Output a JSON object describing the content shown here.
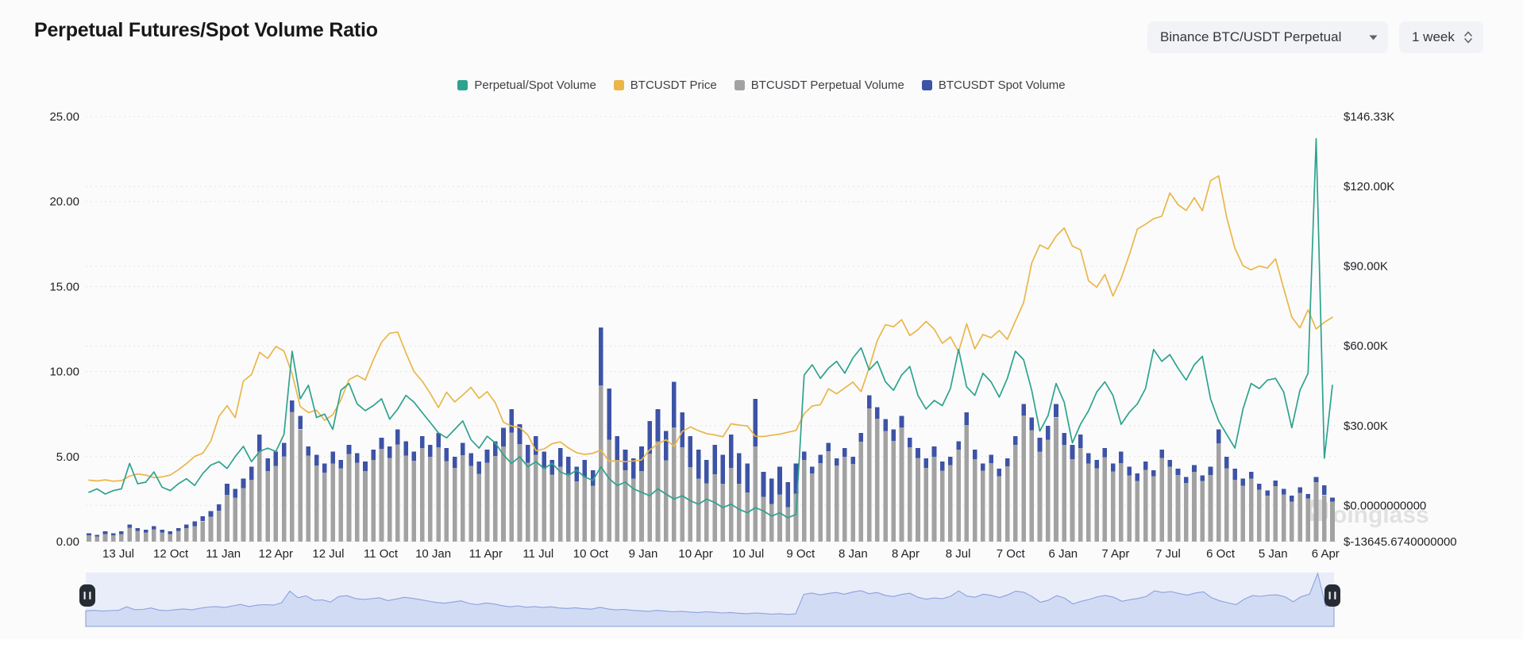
{
  "page": {
    "title": "Perpetual Futures/Spot Volume Ratio"
  },
  "controls": {
    "symbol_dropdown": {
      "value": "Binance BTC/USDT Perpetual"
    },
    "interval_spinner": {
      "value": "1 week"
    }
  },
  "legend": [
    {
      "label": "Perpetual/Spot Volume",
      "color": "#2EA28E"
    },
    {
      "label": "BTCUSDT Price",
      "color": "#EAB64A"
    },
    {
      "label": "BTCUSDT Perpetual Volume",
      "color": "#A2A2A2"
    },
    {
      "label": "BTCUSDT Spot Volume",
      "color": "#3D53A6"
    }
  ],
  "watermark": {
    "text": "oinglass"
  },
  "colors": {
    "ratio_line": "#2EA28E",
    "price_line": "#EAB64A",
    "perp_bar": "#A2A2A2",
    "spot_bar": "#3D53A6",
    "grid": "#E4E4E5",
    "nav_bg": "#E9EDF9",
    "nav_area": "#CBD7F3",
    "nav_line": "#8CA0DE",
    "nav_handle": "#262B34"
  },
  "chart_data": {
    "type": "mixed",
    "note": "Weekly data (rendered bi-weekly, 154 points) from ~Jul 2020 to 6 Apr (end of range). Volume bar values are relative heights on the left-axis unit scale because the volume axis is unlabeled in the chart.",
    "x_ticks": [
      "13 Jul",
      "12 Oct",
      "11 Jan",
      "12 Apr",
      "12 Jul",
      "11 Oct",
      "10 Jan",
      "11 Apr",
      "11 Jul",
      "10 Oct",
      "9 Jan",
      "10 Apr",
      "10 Jul",
      "9 Oct",
      "8 Jan",
      "8 Apr",
      "8 Jul",
      "7 Oct",
      "6 Jan",
      "7 Apr",
      "7 Jul",
      "6 Oct",
      "5 Jan",
      "6 Apr"
    ],
    "left_axis": {
      "min": 0,
      "max": 25,
      "ticks": [
        {
          "label": "25.00",
          "value": 25
        },
        {
          "label": "20.00",
          "value": 20
        },
        {
          "label": "15.00",
          "value": 15
        },
        {
          "label": "10.00",
          "value": 10
        },
        {
          "label": "5.00",
          "value": 5
        },
        {
          "label": "0.00",
          "value": 0
        }
      ]
    },
    "right_axis": {
      "min": -13645.674,
      "max": 146330,
      "ticks": [
        {
          "label": "$146.33K",
          "value": 146330
        },
        {
          "label": "$120.00K",
          "value": 120000
        },
        {
          "label": "$90.00K",
          "value": 90000
        },
        {
          "label": "$60.00K",
          "value": 60000
        },
        {
          "label": "$30.00K",
          "value": 30000
        },
        {
          "label": "$0.0000000000",
          "value": 0
        },
        {
          "label": "$-13645.6740000000",
          "value": -13645.674
        }
      ]
    },
    "series": [
      {
        "name": "Perpetual/Spot Volume",
        "type": "line",
        "axis": "left",
        "color": "#2EA28E",
        "values": [
          2.9,
          3.1,
          2.8,
          3.0,
          3.1,
          4.6,
          3.4,
          3.5,
          4.1,
          3.2,
          3.0,
          3.4,
          3.7,
          3.3,
          4.0,
          4.5,
          4.7,
          4.3,
          5.0,
          5.6,
          4.7,
          5.3,
          5.5,
          5.3,
          6.3,
          11.2,
          8.4,
          9.2,
          7.3,
          7.5,
          6.6,
          8.9,
          9.3,
          8.1,
          7.7,
          8.0,
          8.4,
          7.2,
          7.8,
          8.6,
          8.2,
          7.6,
          7.0,
          6.4,
          6.1,
          6.6,
          7.1,
          6.0,
          5.5,
          6.2,
          5.8,
          5.1,
          4.6,
          5.0,
          4.4,
          4.7,
          4.3,
          4.6,
          4.1,
          3.9,
          4.2,
          3.8,
          3.6,
          4.4,
          3.7,
          3.3,
          3.5,
          3.1,
          2.9,
          2.7,
          3.1,
          2.8,
          2.5,
          2.7,
          2.4,
          2.2,
          2.5,
          2.3,
          2.0,
          2.2,
          1.9,
          1.7,
          2.0,
          1.8,
          1.5,
          1.7,
          1.4,
          1.6,
          9.8,
          10.4,
          9.6,
          10.2,
          10.6,
          9.9,
          10.8,
          11.4,
          10.1,
          10.6,
          9.4,
          8.9,
          9.8,
          10.3,
          8.6,
          7.8,
          8.3,
          8.0,
          9.0,
          11.3,
          9.1,
          8.6,
          9.9,
          9.4,
          8.5,
          9.6,
          11.2,
          10.7,
          8.9,
          6.5,
          7.4,
          9.3,
          8.2,
          5.8,
          6.9,
          7.7,
          8.8,
          9.4,
          8.6,
          6.9,
          7.6,
          8.1,
          9.0,
          11.3,
          10.6,
          11.0,
          10.2,
          9.5,
          10.4,
          10.9,
          8.4,
          7.1,
          6.3,
          5.5,
          7.8,
          9.3,
          9.0,
          9.5,
          9.6,
          8.8,
          6.7,
          8.9,
          9.9,
          23.7,
          4.9,
          9.2
        ]
      },
      {
        "name": "BTCUSDT Price",
        "type": "line",
        "axis": "right",
        "color": "#EAB64A",
        "unit": "K USD",
        "values": [
          9.5,
          9.2,
          9.6,
          9.1,
          9.3,
          11.0,
          11.8,
          11.4,
          10.4,
          10.7,
          11.4,
          13.4,
          15.7,
          18.4,
          19.6,
          24.2,
          33.5,
          37.5,
          33.0,
          46.8,
          49.2,
          57.6,
          55.3,
          59.8,
          58.1,
          49.5,
          37.2,
          34.9,
          35.8,
          32.0,
          34.1,
          39.7,
          47.3,
          48.9,
          47.2,
          54.8,
          61.4,
          64.8,
          65.2,
          57.4,
          50.3,
          46.8,
          42.1,
          36.8,
          42.6,
          38.9,
          41.5,
          44.4,
          40.3,
          42.8,
          38.6,
          31.3,
          29.8,
          29.3,
          26.5,
          20.6,
          21.2,
          23.2,
          23.9,
          21.6,
          19.8,
          19.2,
          19.6,
          20.8,
          16.5,
          16.8,
          16.4,
          16.7,
          17.1,
          20.9,
          23.1,
          24.7,
          22.2,
          27.8,
          29.5,
          28.1,
          27.0,
          26.5,
          25.8,
          30.7,
          30.2,
          29.9,
          26.0,
          25.9,
          26.4,
          26.8,
          27.5,
          28.2,
          34.5,
          37.4,
          37.9,
          43.9,
          42.0,
          44.2,
          46.4,
          42.8,
          51.8,
          62.0,
          68.0,
          67.2,
          69.9,
          63.9,
          66.1,
          69.2,
          66.3,
          61.0,
          63.4,
          57.8,
          68.3,
          58.9,
          64.3,
          63.1,
          65.8,
          62.5,
          69.4,
          76.3,
          91.2,
          98.0,
          96.5,
          101.3,
          104.4,
          97.6,
          96.2,
          84.5,
          82.1,
          86.9,
          78.8,
          85.4,
          94.2,
          104.0,
          105.8,
          107.9,
          108.8,
          117.6,
          113.2,
          111.0,
          115.8,
          110.9,
          122.2,
          124.0,
          108.3,
          96.8,
          90.2,
          88.6,
          90.1,
          89.3,
          92.8,
          81.7,
          70.9,
          66.8,
          73.6,
          66.4,
          68.9,
          70.8
        ]
      },
      {
        "name": "BTCUSDT Perpetual Volume",
        "type": "bar",
        "stack": "volume",
        "color": "#A2A2A2",
        "values": [
          0.37,
          0.3,
          0.44,
          0.37,
          0.45,
          0.82,
          0.62,
          0.54,
          0.72,
          0.53,
          0.45,
          0.62,
          0.79,
          0.92,
          1.2,
          1.47,
          1.81,
          2.76,
          2.58,
          3.14,
          3.63,
          5.3,
          4.15,
          4.46,
          5.01,
          7.62,
          6.61,
          5.05,
          4.49,
          4.06,
          4.6,
          4.32,
          5.15,
          4.63,
          4.16,
          4.8,
          5.45,
          4.92,
          5.72,
          5.07,
          4.75,
          5.51,
          5.0,
          5.54,
          4.73,
          4.34,
          5.08,
          4.46,
          3.98,
          4.65,
          5.03,
          5.6,
          6.41,
          5.75,
          4.64,
          5.11,
          4.3,
          3.94,
          4.42,
          3.98,
          3.55,
          3.8,
          3.29,
          9.2,
          6.0,
          4.76,
          4.2,
          3.7,
          4.16,
          5.18,
          5.9,
          4.79,
          6.71,
          5.55,
          4.38,
          3.71,
          3.43,
          3.97,
          3.4,
          4.33,
          3.41,
          2.9,
          5.6,
          2.64,
          2.22,
          2.77,
          2.04,
          2.83,
          4.81,
          4.01,
          4.62,
          5.28,
          4.48,
          5.0,
          4.58,
          5.88,
          7.83,
          7.22,
          6.51,
          5.93,
          6.71,
          5.56,
          4.93,
          4.34,
          5.0,
          4.18,
          4.5,
          5.42,
          6.85,
          4.84,
          4.18,
          4.61,
          3.85,
          4.44,
          5.69,
          7.41,
          6.56,
          5.29,
          5.99,
          7.31,
          5.7,
          4.86,
          5.5,
          4.6,
          4.31,
          4.97,
          4.12,
          4.63,
          3.89,
          3.56,
          4.23,
          3.86,
          4.93,
          4.4,
          3.92,
          3.44,
          4.11,
          3.57,
          3.93,
          5.79,
          4.32,
          3.64,
          3.28,
          3.7,
          3.06,
          2.71,
          3.26,
          2.78,
          2.35,
          2.88,
          2.54,
          3.5,
          2.74,
          2.35
        ]
      },
      {
        "name": "BTCUSDT Spot Volume",
        "type": "bar",
        "stack": "volume",
        "color": "#3D53A6",
        "values": [
          0.13,
          0.1,
          0.16,
          0.13,
          0.15,
          0.18,
          0.18,
          0.16,
          0.18,
          0.17,
          0.15,
          0.18,
          0.21,
          0.28,
          0.3,
          0.33,
          0.39,
          0.64,
          0.52,
          0.56,
          0.77,
          1.0,
          0.75,
          0.84,
          0.79,
          0.68,
          0.79,
          0.55,
          0.61,
          0.54,
          0.7,
          0.48,
          0.55,
          0.57,
          0.54,
          0.6,
          0.65,
          0.68,
          0.88,
          0.83,
          0.55,
          0.69,
          0.7,
          0.86,
          0.77,
          0.66,
          0.72,
          0.74,
          0.72,
          0.75,
          0.87,
          1.1,
          1.39,
          1.15,
          1.06,
          1.09,
          1.0,
          0.86,
          1.08,
          1.02,
          0.85,
          1.0,
          0.91,
          3.4,
          3.0,
          1.44,
          1.2,
          1.2,
          1.44,
          1.92,
          1.9,
          1.71,
          2.69,
          2.05,
          1.82,
          1.69,
          1.37,
          1.73,
          1.7,
          1.97,
          1.79,
          1.7,
          2.8,
          1.46,
          1.48,
          1.63,
          1.46,
          1.77,
          0.49,
          0.39,
          0.48,
          0.52,
          0.42,
          0.5,
          0.42,
          0.52,
          0.77,
          0.68,
          0.69,
          0.67,
          0.69,
          0.54,
          0.57,
          0.56,
          0.6,
          0.52,
          0.5,
          0.48,
          0.75,
          0.56,
          0.42,
          0.49,
          0.45,
          0.46,
          0.51,
          0.69,
          0.74,
          0.81,
          0.81,
          0.79,
          0.7,
          0.84,
          0.8,
          0.6,
          0.49,
          0.53,
          0.48,
          0.67,
          0.51,
          0.44,
          0.47,
          0.34,
          0.47,
          0.4,
          0.38,
          0.36,
          0.39,
          0.33,
          0.47,
          0.81,
          0.68,
          0.66,
          0.42,
          0.4,
          0.34,
          0.29,
          0.34,
          0.32,
          0.35,
          0.32,
          0.26,
          0.3,
          0.56,
          0.25
        ]
      }
    ],
    "navigator": {
      "shows_series": "Perpetual/Spot Volume",
      "range": "full"
    }
  }
}
